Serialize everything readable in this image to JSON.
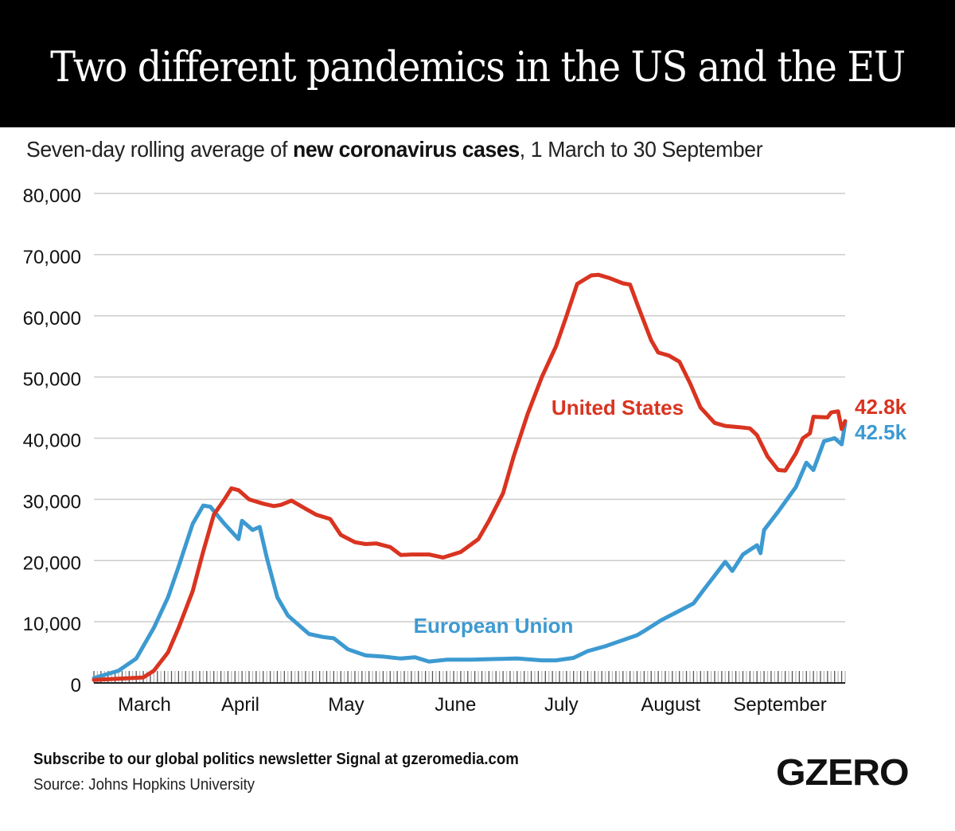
{
  "header": {
    "title": "Two different pandemics in the US and the EU",
    "subtitle_pre": "Seven-day rolling average of ",
    "subtitle_bold": "new coronavirus cases",
    "subtitle_post": ", 1 March to 30 September"
  },
  "footer": {
    "subscribe": "Subscribe to our global politics newsletter Signal at gzeromedia.com",
    "source": "Source: Johns Hopkins University",
    "logo": "GZERO"
  },
  "chart_data": {
    "type": "line",
    "title": "Two different pandemics in the US and the EU",
    "subtitle": "Seven-day rolling average of new coronavirus cases, 1 March to 30 September",
    "xlabel": "",
    "ylabel": "",
    "x_range_days": [
      0,
      213
    ],
    "ylim": [
      0,
      80000
    ],
    "yticks": [
      0,
      10000,
      20000,
      30000,
      40000,
      50000,
      60000,
      70000,
      80000
    ],
    "ytick_labels": [
      "0",
      "10,000",
      "20,000",
      "30,000",
      "40,000",
      "50,000",
      "60,000",
      "70,000",
      "80,000"
    ],
    "xtick_labels": [
      {
        "label": "March",
        "day": 8
      },
      {
        "label": "April",
        "day": 37
      },
      {
        "label": "May",
        "day": 67
      },
      {
        "label": "June",
        "day": 98
      },
      {
        "label": "July",
        "day": 128
      },
      {
        "label": "August",
        "day": 159
      },
      {
        "label": "September",
        "day": 190
      }
    ],
    "grid": true,
    "colors": {
      "us": "#d93420",
      "eu": "#3d9ad1",
      "grid": "#cccccc"
    },
    "series": [
      {
        "name": "United States",
        "label": "United States",
        "end_label": "42.8k",
        "color": "#d93420",
        "points": [
          [
            0,
            500
          ],
          [
            14,
            900
          ],
          [
            17,
            2000
          ],
          [
            21,
            5000
          ],
          [
            24,
            9000
          ],
          [
            28,
            15000
          ],
          [
            31,
            21500
          ],
          [
            34,
            27500
          ],
          [
            37,
            30000
          ],
          [
            39,
            31800
          ],
          [
            41,
            31500
          ],
          [
            44,
            30000
          ],
          [
            48,
            29300
          ],
          [
            51,
            28900
          ],
          [
            53,
            29100
          ],
          [
            56,
            29800
          ],
          [
            59,
            28800
          ],
          [
            63,
            27500
          ],
          [
            67,
            26800
          ],
          [
            70,
            24200
          ],
          [
            74,
            23000
          ],
          [
            77,
            22700
          ],
          [
            80,
            22800
          ],
          [
            84,
            22200
          ],
          [
            87,
            20900
          ],
          [
            90,
            21000
          ],
          [
            95,
            21000
          ],
          [
            99,
            20500
          ],
          [
            104,
            21400
          ],
          [
            109,
            23500
          ],
          [
            112,
            26500
          ],
          [
            116,
            31000
          ],
          [
            119,
            37000
          ],
          [
            123,
            44000
          ],
          [
            125,
            47000
          ],
          [
            127,
            50000
          ],
          [
            131,
            55000
          ],
          [
            134,
            60000
          ],
          [
            137,
            65200
          ],
          [
            141,
            66600
          ],
          [
            143,
            66700
          ],
          [
            146,
            66200
          ],
          [
            150,
            65300
          ],
          [
            152,
            65100
          ],
          [
            154,
            62000
          ],
          [
            158,
            56000
          ],
          [
            160,
            54000
          ],
          [
            163,
            53500
          ],
          [
            166,
            52500
          ],
          [
            169,
            49000
          ],
          [
            172,
            45000
          ],
          [
            176,
            42500
          ],
          [
            179,
            42000
          ],
          [
            183,
            41800
          ],
          [
            186,
            41600
          ],
          [
            188,
            40500
          ],
          [
            191,
            37000
          ],
          [
            194,
            34800
          ],
          [
            196,
            34700
          ],
          [
            199,
            37500
          ],
          [
            201,
            40000
          ],
          [
            203,
            40800
          ],
          [
            204,
            43500
          ],
          [
            208,
            43400
          ],
          [
            209,
            44200
          ],
          [
            211,
            44400
          ],
          [
            212,
            41500
          ],
          [
            213,
            42800
          ]
        ]
      },
      {
        "name": "European Union",
        "label": "European Union",
        "end_label": "42.5k",
        "color": "#3d9ad1",
        "points": [
          [
            0,
            800
          ],
          [
            7,
            2000
          ],
          [
            12,
            4000
          ],
          [
            17,
            9000
          ],
          [
            21,
            14000
          ],
          [
            24,
            19000
          ],
          [
            28,
            26000
          ],
          [
            31,
            29000
          ],
          [
            33,
            28800
          ],
          [
            37,
            26000
          ],
          [
            41,
            23500
          ],
          [
            42,
            26500
          ],
          [
            45,
            25000
          ],
          [
            47,
            25500
          ],
          [
            49,
            20500
          ],
          [
            52,
            14000
          ],
          [
            55,
            11000
          ],
          [
            58,
            9500
          ],
          [
            61,
            8000
          ],
          [
            65,
            7500
          ],
          [
            68,
            7300
          ],
          [
            72,
            5500
          ],
          [
            77,
            4500
          ],
          [
            82,
            4300
          ],
          [
            87,
            4000
          ],
          [
            91,
            4200
          ],
          [
            95,
            3500
          ],
          [
            100,
            3800
          ],
          [
            107,
            3800
          ],
          [
            113,
            3900
          ],
          [
            120,
            4000
          ],
          [
            127,
            3700
          ],
          [
            131,
            3700
          ],
          [
            136,
            4100
          ],
          [
            140,
            5200
          ],
          [
            145,
            6000
          ],
          [
            149,
            6800
          ],
          [
            154,
            7800
          ],
          [
            156,
            8500
          ],
          [
            161,
            10300
          ],
          [
            165,
            11500
          ],
          [
            170,
            13000
          ],
          [
            173,
            15300
          ],
          [
            179,
            19800
          ],
          [
            181,
            18300
          ],
          [
            184,
            21000
          ],
          [
            188,
            22500
          ],
          [
            189,
            21200
          ],
          [
            190,
            25000
          ],
          [
            194,
            28000
          ],
          [
            199,
            32000
          ],
          [
            202,
            36000
          ],
          [
            204,
            34800
          ],
          [
            207,
            39500
          ],
          [
            210,
            40000
          ],
          [
            212,
            39000
          ],
          [
            213,
            42500
          ]
        ]
      }
    ]
  }
}
